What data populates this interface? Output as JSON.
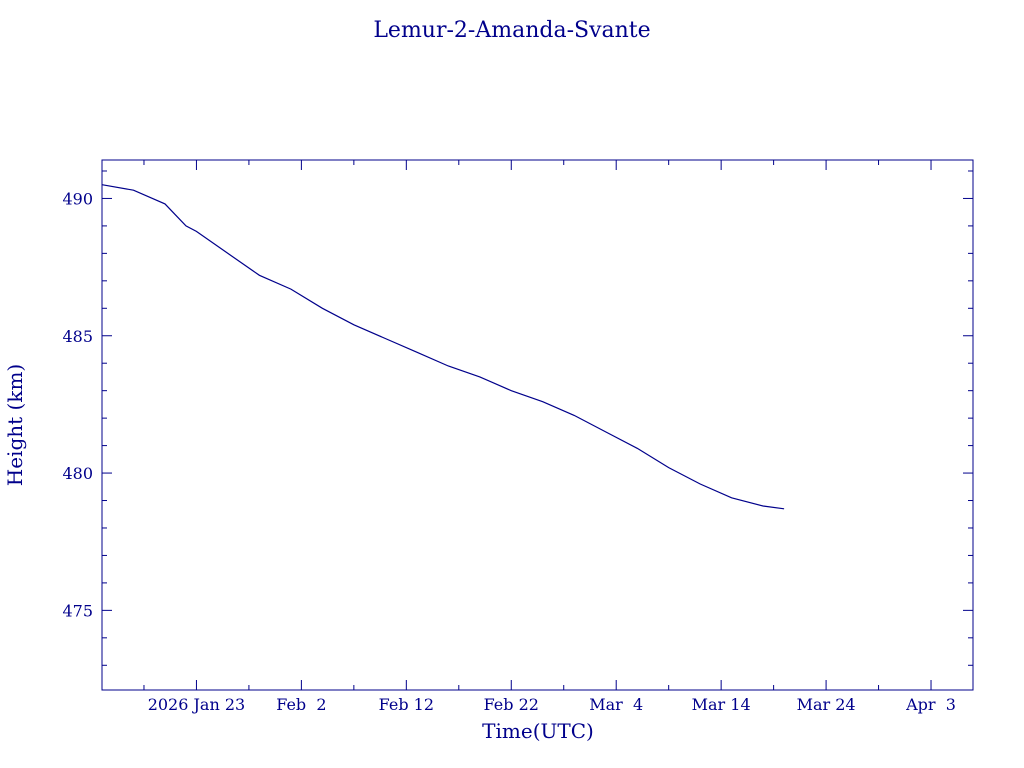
{
  "chart_data": {
    "type": "line",
    "title": "Lemur-2-Amanda-Svante",
    "xlabel": "Time(UTC)",
    "ylabel": "Height (km)",
    "x_tick_labels": [
      "2026 Jan 23",
      "Feb  2",
      "Feb 12",
      "Feb 22",
      "Mar  4",
      "Mar 14",
      "Mar 24",
      "Apr  3"
    ],
    "x_tick_dates": [
      "2026-01-23",
      "2026-02-02",
      "2026-02-12",
      "2026-02-22",
      "2026-03-04",
      "2026-03-14",
      "2026-03-24",
      "2026-04-03"
    ],
    "xlim": [
      "2026-01-14",
      "2026-04-07"
    ],
    "y_ticks": [
      475,
      480,
      485,
      490
    ],
    "ylim": [
      472.1,
      491.4
    ],
    "grid": false,
    "color": "#00008b",
    "series": [
      {
        "x": [
          "2026-01-14",
          "2026-01-17",
          "2026-01-20",
          "2026-01-21",
          "2026-01-22",
          "2026-01-23",
          "2026-01-26",
          "2026-01-29",
          "2026-02-01",
          "2026-02-04",
          "2026-02-07",
          "2026-02-10",
          "2026-02-13",
          "2026-02-16",
          "2026-02-19",
          "2026-02-22",
          "2026-02-25",
          "2026-02-28",
          "2026-03-03",
          "2026-03-06",
          "2026-03-09",
          "2026-03-12",
          "2026-03-15",
          "2026-03-18",
          "2026-03-20"
        ],
        "y": [
          490.5,
          490.3,
          489.8,
          489.4,
          489.0,
          488.8,
          488.0,
          487.2,
          486.7,
          486.0,
          485.4,
          484.9,
          484.4,
          483.9,
          483.5,
          483.0,
          482.6,
          482.1,
          481.5,
          480.9,
          480.2,
          479.6,
          479.1,
          478.8,
          478.7
        ]
      }
    ]
  }
}
